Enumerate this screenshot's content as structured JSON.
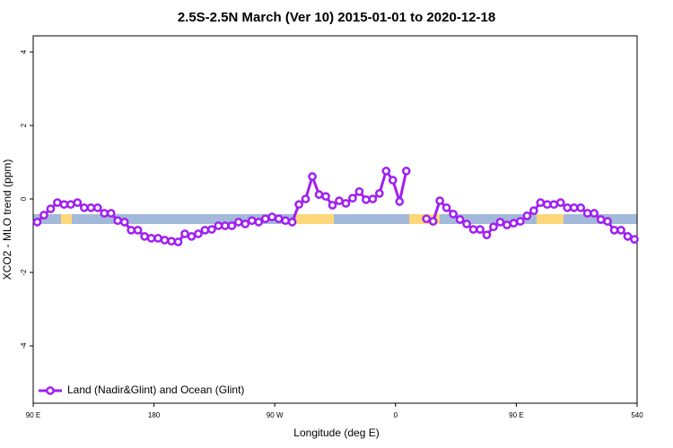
{
  "chart_data": {
    "type": "line",
    "title": "2.5S-2.5N March (Ver 10)   2015-01-01 to 2020-12-18",
    "x_label": "Longitude (deg E)",
    "y_label": "XCO2 - MLO trend (ppm)",
    "x": [
      93,
      98,
      103,
      108,
      113,
      118,
      123,
      128,
      133,
      138,
      143,
      148,
      153,
      158,
      163,
      168,
      173,
      178,
      183,
      188,
      193,
      198,
      203,
      208,
      213,
      218,
      223,
      228,
      233,
      238,
      243,
      248,
      253,
      258,
      263,
      268,
      273,
      278,
      283,
      288,
      293,
      298,
      303,
      308,
      313,
      318,
      323,
      328,
      333,
      338,
      343,
      348,
      353,
      358,
      363,
      368,
      373,
      378,
      383,
      388,
      393,
      398,
      403,
      408,
      413,
      418,
      423,
      428,
      433,
      438,
      443,
      448,
      453,
      458,
      463,
      468,
      473,
      478,
      483,
      488,
      493,
      498,
      503,
      508,
      513,
      518,
      523,
      528,
      533,
      538
    ],
    "series": [
      {
        "name": "Land (Nadir&Glint) and Ocean (Glint)",
        "color": "#a020f0",
        "values": [
          -0.63,
          -0.44,
          -0.27,
          -0.1,
          -0.15,
          -0.15,
          -0.1,
          -0.24,
          -0.24,
          -0.24,
          -0.39,
          -0.39,
          -0.59,
          -0.63,
          -0.85,
          -0.85,
          -1.02,
          -1.07,
          -1.07,
          -1.12,
          -1.15,
          -1.17,
          -0.95,
          -1.02,
          -0.95,
          -0.85,
          -0.83,
          -0.73,
          -0.73,
          -0.73,
          -0.63,
          -0.68,
          -0.59,
          -0.63,
          -0.54,
          -0.49,
          -0.54,
          -0.59,
          -0.63,
          -0.15,
          0.0,
          0.61,
          0.12,
          0.07,
          -0.17,
          -0.05,
          -0.12,
          0.02,
          0.2,
          -0.02,
          0.0,
          0.15,
          0.76,
          0.51,
          -0.07,
          0.76,
          null,
          null,
          -0.54,
          -0.61,
          -0.05,
          -0.24,
          -0.41,
          -0.56,
          -0.68,
          -0.83,
          -0.83,
          -0.98,
          -0.76,
          -0.63,
          -0.71,
          -0.66,
          -0.61,
          -0.46,
          -0.32,
          -0.1,
          -0.15,
          -0.15,
          -0.1,
          -0.24,
          -0.24,
          -0.24,
          -0.39,
          -0.39,
          -0.56,
          -0.61,
          -0.85,
          -0.85,
          -1.02,
          -1.1
        ]
      }
    ],
    "xlim": [
      90,
      540
    ],
    "xticks": [
      {
        "value": 90,
        "label": "90 E"
      },
      180,
      {
        "value": 270,
        "label": "90 W"
      },
      {
        "value": 360,
        "label": "0"
      },
      {
        "value": 450,
        "label": "90 E"
      },
      540
    ],
    "ylim": [
      -5.56,
      4.44
    ],
    "yticks": [
      -4,
      -2,
      0,
      2,
      4
    ],
    "legend": "bottom-left"
  }
}
